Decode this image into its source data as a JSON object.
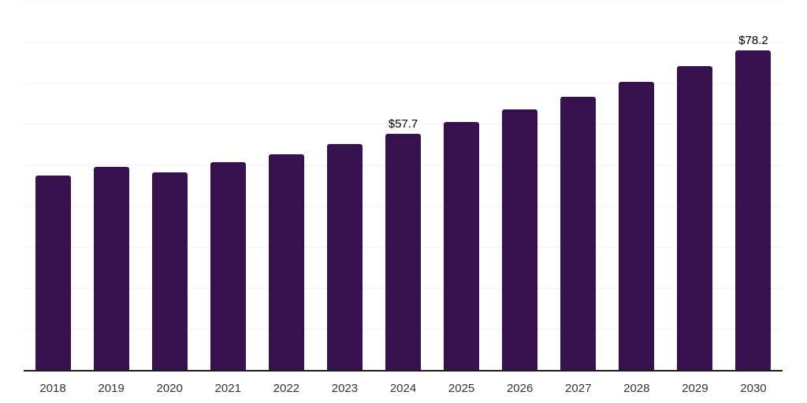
{
  "chart_data": {
    "type": "bar",
    "title": "",
    "xlabel": "",
    "ylabel": "",
    "categories": [
      "2018",
      "2019",
      "2020",
      "2021",
      "2022",
      "2023",
      "2024",
      "2025",
      "2026",
      "2027",
      "2028",
      "2029",
      "2030"
    ],
    "values": [
      47.6,
      49.7,
      48.4,
      50.9,
      52.8,
      55.3,
      57.7,
      60.6,
      63.7,
      66.7,
      70.4,
      74.2,
      78.2
    ],
    "bar_labels": [
      "",
      "",
      "",
      "",
      "",
      "",
      "$57.7",
      "",
      "",
      "",
      "",
      "",
      "$78.2"
    ],
    "value_prefix": "$",
    "ylim": [
      0,
      90
    ],
    "gridline_step": 10,
    "grid": true,
    "legend": false,
    "colors": {
      "bar": "#36114D",
      "gridline": "#f1f1f1",
      "axis_line": "#1a1a1a",
      "tick_label": "#333333",
      "value_label": "#000000",
      "background": "#ffffff"
    }
  }
}
